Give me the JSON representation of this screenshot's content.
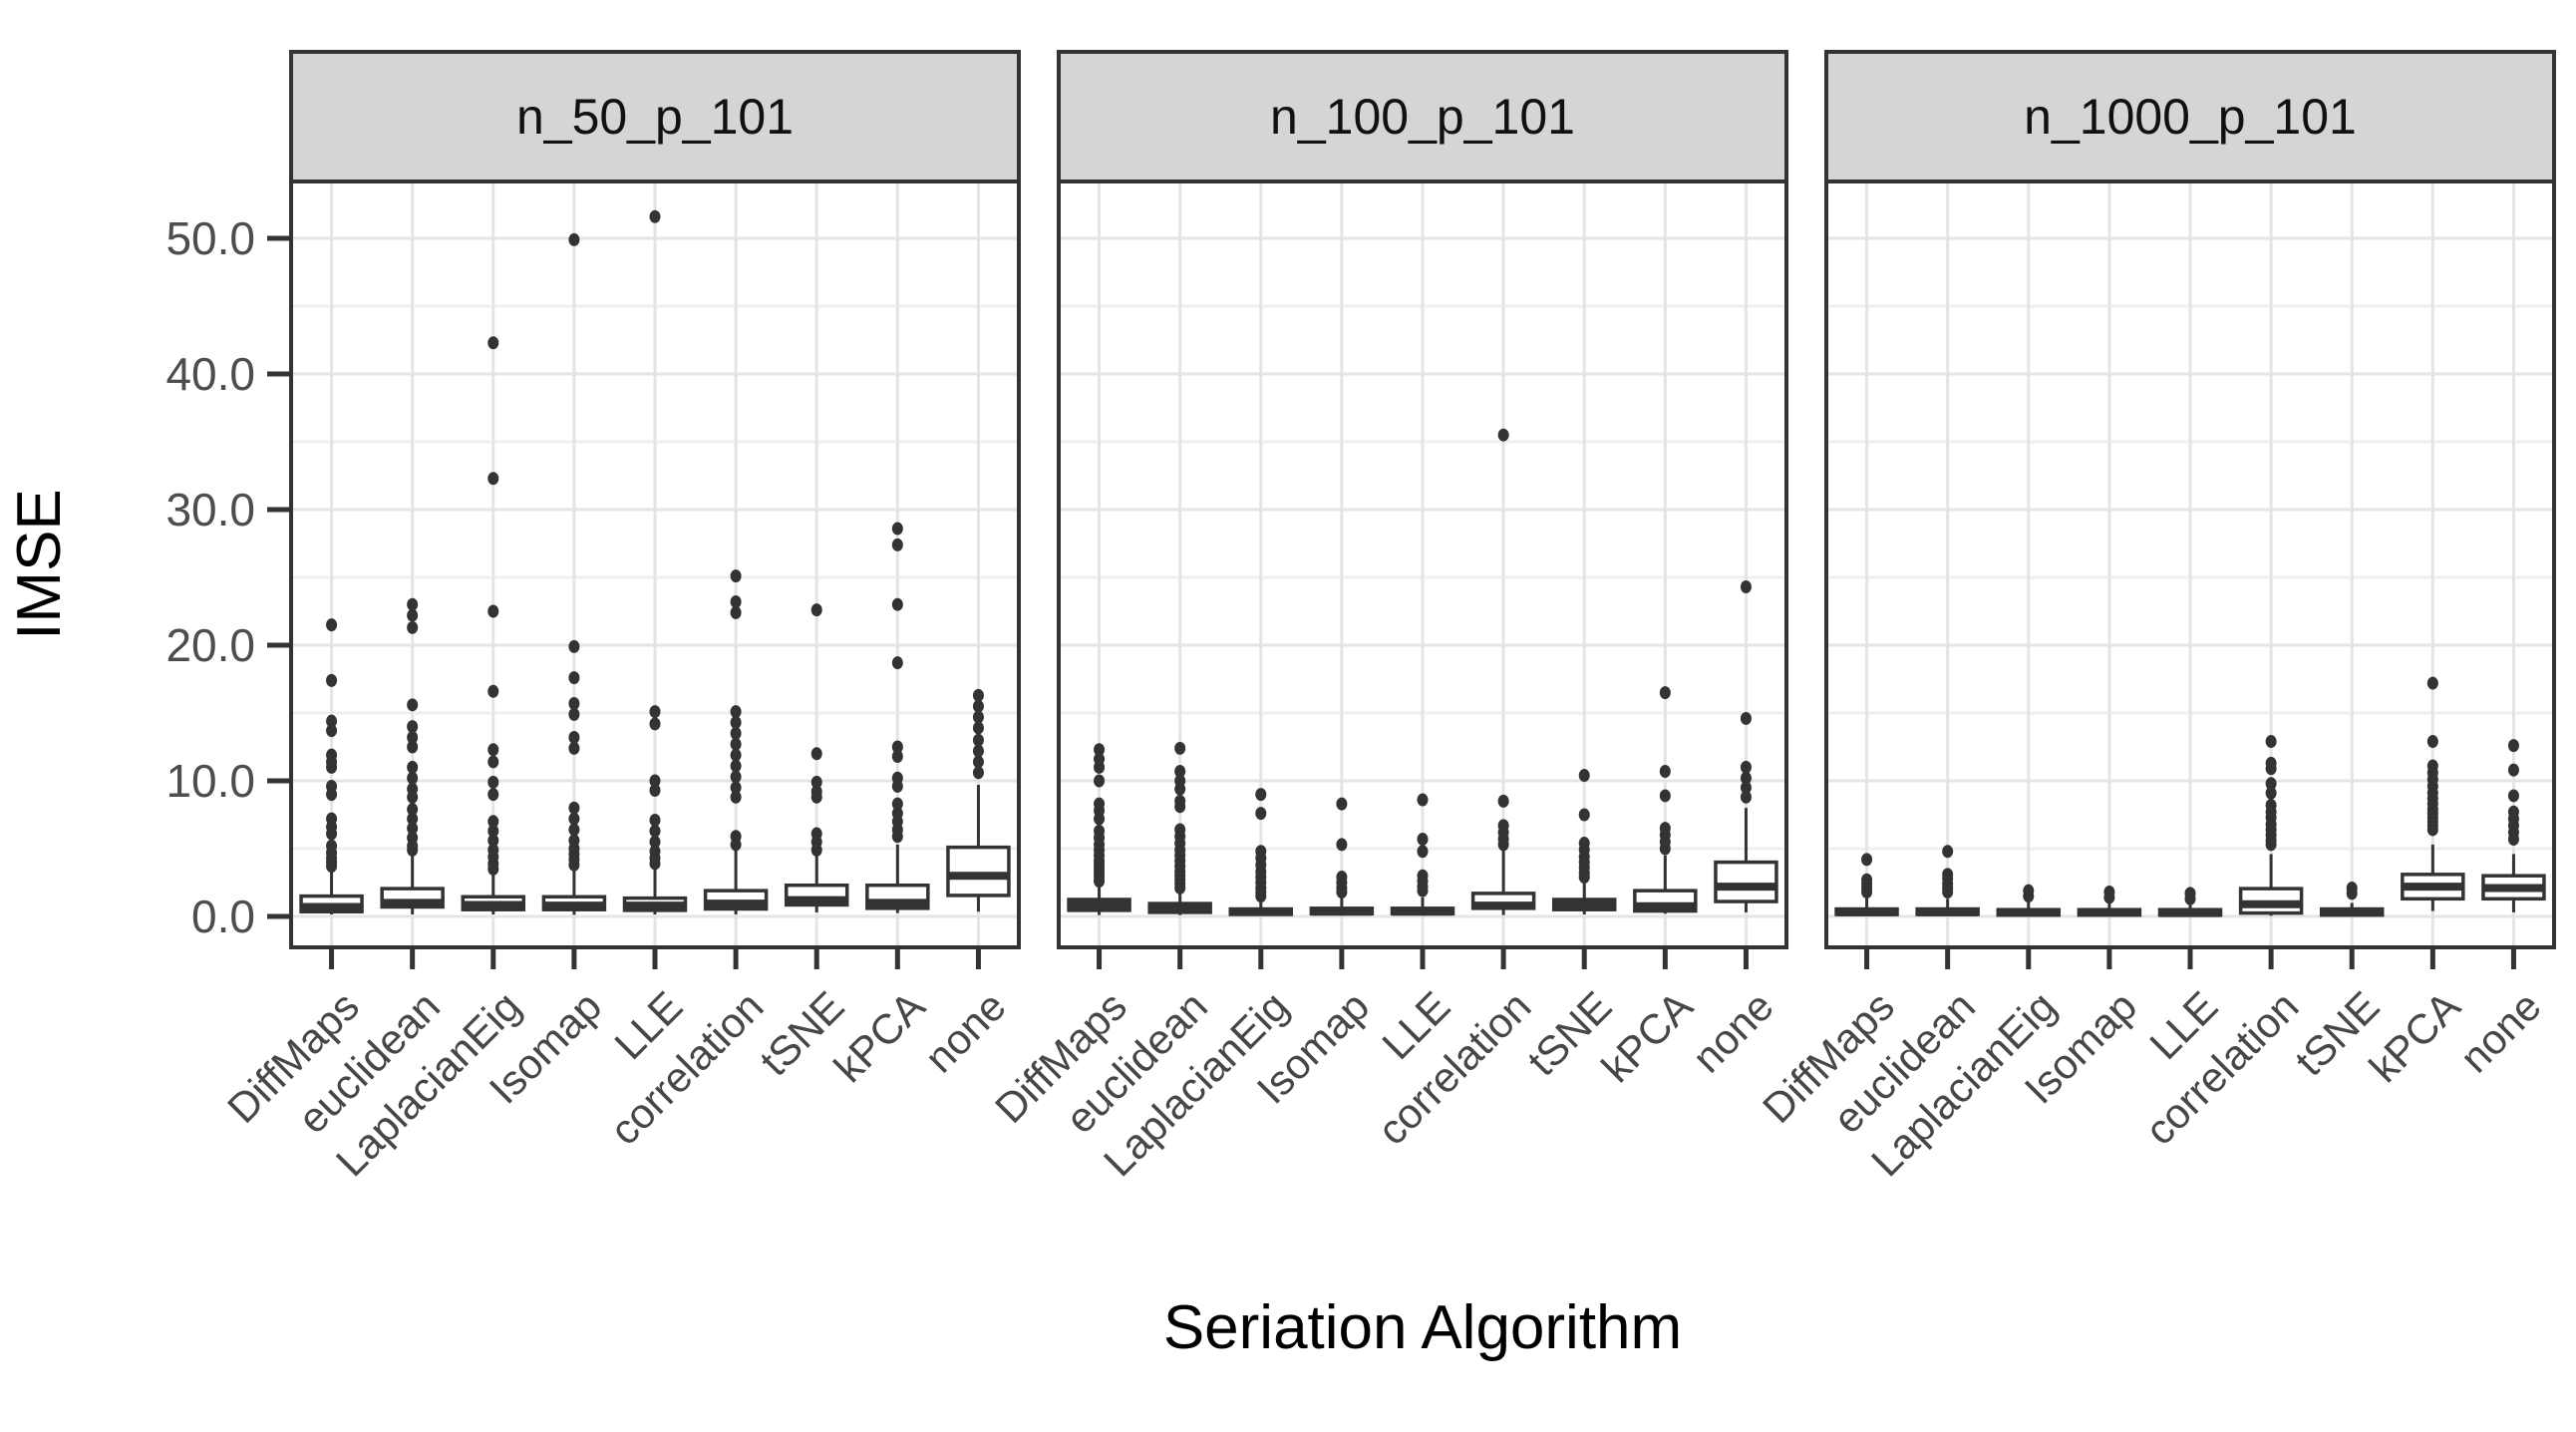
{
  "y_axis": {
    "label": "IMSE",
    "ticks": [
      "0.0",
      "10.0",
      "20.0",
      "30.0",
      "40.0",
      "50.0"
    ],
    "tick_values": [
      0,
      10,
      20,
      30,
      40,
      50
    ],
    "minor_values": [
      5,
      15,
      25,
      35,
      45
    ]
  },
  "x_axis": {
    "label": "Seriation Algorithm"
  },
  "colors": {
    "stroke": "#333333",
    "strip_fill": "#d5d5d5",
    "grid_major": "#e4e4e4",
    "grid_minor": "#efefef",
    "tick_label": "#474747",
    "panel_fill": "#ffffff"
  },
  "chart_data": {
    "type": "boxplot",
    "title": "",
    "xlabel": "Seriation Algorithm",
    "ylabel": "IMSE",
    "ylim": [
      -2.3,
      54.2
    ],
    "grid": true,
    "facet_titles": [
      "n_50_p_101",
      "n_100_p_101",
      "n_1000_p_101"
    ],
    "categories": [
      "DiffMaps",
      "euclidean",
      "LaplacianEig",
      "Isomap",
      "LLE",
      "correlation",
      "tSNE",
      "kPCA",
      "none"
    ],
    "panels": [
      {
        "title": "n_50_p_101",
        "boxes": [
          {
            "category": "DiffMaps",
            "whislo": 0.15,
            "q1": 0.35,
            "med": 0.7,
            "q3": 1.5,
            "whishi": 3.4,
            "outliers": [
              3.7,
              4.0,
              4.3,
              4.7,
              5.2,
              6.1,
              6.6,
              7.2,
              9.0,
              9.6,
              11.0,
              11.4,
              11.9,
              13.7,
              14.4,
              17.4,
              21.5
            ]
          },
          {
            "category": "euclidean",
            "whislo": 0.15,
            "q1": 0.7,
            "med": 1.0,
            "q3": 2.05,
            "whishi": 4.6,
            "outliers": [
              4.9,
              5.2,
              5.8,
              6.5,
              7.2,
              7.9,
              8.8,
              9.4,
              10.2,
              11.0,
              12.5,
              13.2,
              14.0,
              15.6,
              21.3,
              22.2,
              23.0
            ]
          },
          {
            "category": "LaplacianEig",
            "whislo": 0.15,
            "q1": 0.5,
            "med": 0.85,
            "q3": 1.45,
            "whishi": 3.2,
            "outliers": [
              3.5,
              3.9,
              4.4,
              4.9,
              5.6,
              6.3,
              7.0,
              9.0,
              9.9,
              11.4,
              12.3,
              16.6,
              22.5,
              32.3,
              42.3
            ]
          },
          {
            "category": "Isomap",
            "whislo": 0.12,
            "q1": 0.5,
            "med": 0.8,
            "q3": 1.45,
            "whishi": 3.5,
            "outliers": [
              3.8,
              4.2,
              4.6,
              5.0,
              5.6,
              6.4,
              7.2,
              8.0,
              12.4,
              13.2,
              14.9,
              15.7,
              17.6,
              19.9,
              49.9
            ]
          },
          {
            "category": "LLE",
            "whislo": 0.15,
            "q1": 0.45,
            "med": 0.8,
            "q3": 1.35,
            "whishi": 3.6,
            "outliers": [
              3.9,
              4.3,
              4.8,
              5.5,
              6.3,
              7.1,
              9.3,
              10.0,
              14.2,
              15.1,
              51.6
            ]
          },
          {
            "category": "correlation",
            "whislo": 0.15,
            "q1": 0.55,
            "med": 0.95,
            "q3": 1.9,
            "whishi": 5.0,
            "outliers": [
              5.3,
              5.9,
              8.8,
              9.5,
              10.3,
              11.1,
              11.9,
              12.7,
              13.5,
              14.3,
              15.1,
              22.4,
              23.2,
              25.1
            ]
          },
          {
            "category": "tSNE",
            "whislo": 0.3,
            "q1": 0.85,
            "med": 1.2,
            "q3": 2.3,
            "whishi": 4.8,
            "outliers": [
              4.9,
              5.5,
              6.1,
              8.8,
              9.2,
              9.9,
              12.0,
              22.6
            ]
          },
          {
            "category": "kPCA",
            "whislo": 0.25,
            "q1": 0.6,
            "med": 1.0,
            "q3": 2.3,
            "whishi": 5.3,
            "outliers": [
              5.9,
              6.4,
              7.0,
              7.6,
              8.3,
              9.6,
              10.2,
              11.8,
              12.5,
              18.7,
              23.0,
              27.4,
              28.6
            ]
          },
          {
            "category": "none",
            "whislo": 0.35,
            "q1": 1.55,
            "med": 3.0,
            "q3": 5.1,
            "whishi": 9.7,
            "outliers": [
              10.6,
              11.4,
              12.2,
              13.0,
              13.9,
              14.7,
              15.5,
              16.3
            ]
          }
        ]
      },
      {
        "title": "n_100_p_101",
        "boxes": [
          {
            "category": "DiffMaps",
            "whislo": 0.1,
            "q1": 0.45,
            "med": 0.85,
            "q3": 1.25,
            "whishi": 2.3,
            "outliers": [
              2.6,
              2.9,
              3.2,
              3.5,
              3.8,
              4.1,
              4.5,
              4.9,
              5.3,
              5.8,
              6.3,
              7.2,
              7.8,
              8.3,
              10.0,
              11.0,
              11.6,
              12.3
            ]
          },
          {
            "category": "euclidean",
            "whislo": 0.1,
            "q1": 0.3,
            "med": 0.65,
            "q3": 0.95,
            "whishi": 1.9,
            "outliers": [
              2.1,
              2.4,
              2.7,
              3.0,
              3.3,
              3.7,
              4.1,
              4.5,
              4.9,
              5.4,
              5.9,
              6.4,
              8.1,
              8.5,
              9.4,
              10.0,
              10.7,
              12.4
            ]
          },
          {
            "category": "LaplacianEig",
            "whislo": 0.05,
            "q1": 0.15,
            "med": 0.35,
            "q3": 0.55,
            "whishi": 1.3,
            "outliers": [
              1.5,
              1.8,
              2.1,
              2.5,
              2.9,
              3.3,
              3.8,
              4.3,
              4.8,
              7.6,
              9.0
            ]
          },
          {
            "category": "Isomap",
            "whislo": 0.05,
            "q1": 0.2,
            "med": 0.35,
            "q3": 0.6,
            "whishi": 1.5,
            "outliers": [
              1.8,
              2.1,
              2.5,
              2.9,
              5.3,
              8.3
            ]
          },
          {
            "category": "LLE",
            "whislo": 0.05,
            "q1": 0.2,
            "med": 0.35,
            "q3": 0.6,
            "whishi": 1.4,
            "outliers": [
              1.9,
              2.2,
              2.6,
              3.0,
              4.8,
              5.7,
              8.6
            ]
          },
          {
            "category": "correlation",
            "whislo": 0.1,
            "q1": 0.6,
            "med": 0.8,
            "q3": 1.7,
            "whishi": 5.0,
            "outliers": [
              5.3,
              5.7,
              6.2,
              6.7,
              8.5,
              35.5
            ]
          },
          {
            "category": "tSNE",
            "whislo": 0.15,
            "q1": 0.5,
            "med": 0.85,
            "q3": 1.25,
            "whishi": 2.6,
            "outliers": [
              2.9,
              3.2,
              3.6,
              4.0,
              4.4,
              4.9,
              5.4,
              7.5,
              10.4
            ]
          },
          {
            "category": "kPCA",
            "whislo": 0.2,
            "q1": 0.4,
            "med": 0.75,
            "q3": 1.9,
            "whishi": 4.5,
            "outliers": [
              5.0,
              5.5,
              6.0,
              6.5,
              8.9,
              10.7,
              16.5
            ]
          },
          {
            "category": "none",
            "whislo": 0.3,
            "q1": 1.1,
            "med": 2.2,
            "q3": 4.0,
            "whishi": 8.0,
            "outliers": [
              8.8,
              9.5,
              10.2,
              11.0,
              14.6,
              24.3
            ]
          }
        ]
      },
      {
        "title": "n_1000_p_101",
        "boxes": [
          {
            "category": "DiffMaps",
            "whislo": 0.05,
            "q1": 0.15,
            "med": 0.3,
            "q3": 0.55,
            "whishi": 1.4,
            "outliers": [
              1.8,
              2.1,
              2.4,
              2.7,
              4.2
            ]
          },
          {
            "category": "euclidean",
            "whislo": 0.05,
            "q1": 0.15,
            "med": 0.3,
            "q3": 0.55,
            "whishi": 1.3,
            "outliers": [
              1.8,
              2.1,
              2.4,
              2.8,
              3.1,
              4.8
            ]
          },
          {
            "category": "LaplacianEig",
            "whislo": 0.03,
            "q1": 0.1,
            "med": 0.3,
            "q3": 0.5,
            "whishi": 1.1,
            "outliers": [
              1.5,
              1.9
            ]
          },
          {
            "category": "Isomap",
            "whislo": 0.03,
            "q1": 0.1,
            "med": 0.3,
            "q3": 0.5,
            "whishi": 1.1,
            "outliers": [
              1.4,
              1.8
            ]
          },
          {
            "category": "LLE",
            "whislo": 0.03,
            "q1": 0.1,
            "med": 0.25,
            "q3": 0.5,
            "whishi": 1.0,
            "outliers": [
              1.3,
              1.7
            ]
          },
          {
            "category": "correlation",
            "whislo": 0.05,
            "q1": 0.25,
            "med": 0.9,
            "q3": 2.05,
            "whishi": 4.6,
            "outliers": [
              5.3,
              5.6,
              6.0,
              6.4,
              6.8,
              7.3,
              7.7,
              8.2,
              9.1,
              9.8,
              10.9,
              11.3,
              12.9
            ]
          },
          {
            "category": "tSNE",
            "whislo": 0.02,
            "q1": 0.1,
            "med": 0.3,
            "q3": 0.55,
            "whishi": 1.0,
            "outliers": [
              1.7,
              2.1
            ]
          },
          {
            "category": "kPCA",
            "whislo": 0.4,
            "q1": 1.3,
            "med": 2.2,
            "q3": 3.1,
            "whishi": 5.3,
            "outliers": [
              6.4,
              6.7,
              7.0,
              7.3,
              7.6,
              7.9,
              8.3,
              8.7,
              9.1,
              9.6,
              10.1,
              10.6,
              11.1,
              12.9,
              17.2
            ]
          },
          {
            "category": "none",
            "whislo": 0.3,
            "q1": 1.3,
            "med": 2.1,
            "q3": 3.0,
            "whishi": 4.6,
            "outliers": [
              5.7,
              6.2,
              6.7,
              7.2,
              7.7,
              8.9,
              10.8,
              12.6
            ]
          }
        ]
      }
    ]
  }
}
